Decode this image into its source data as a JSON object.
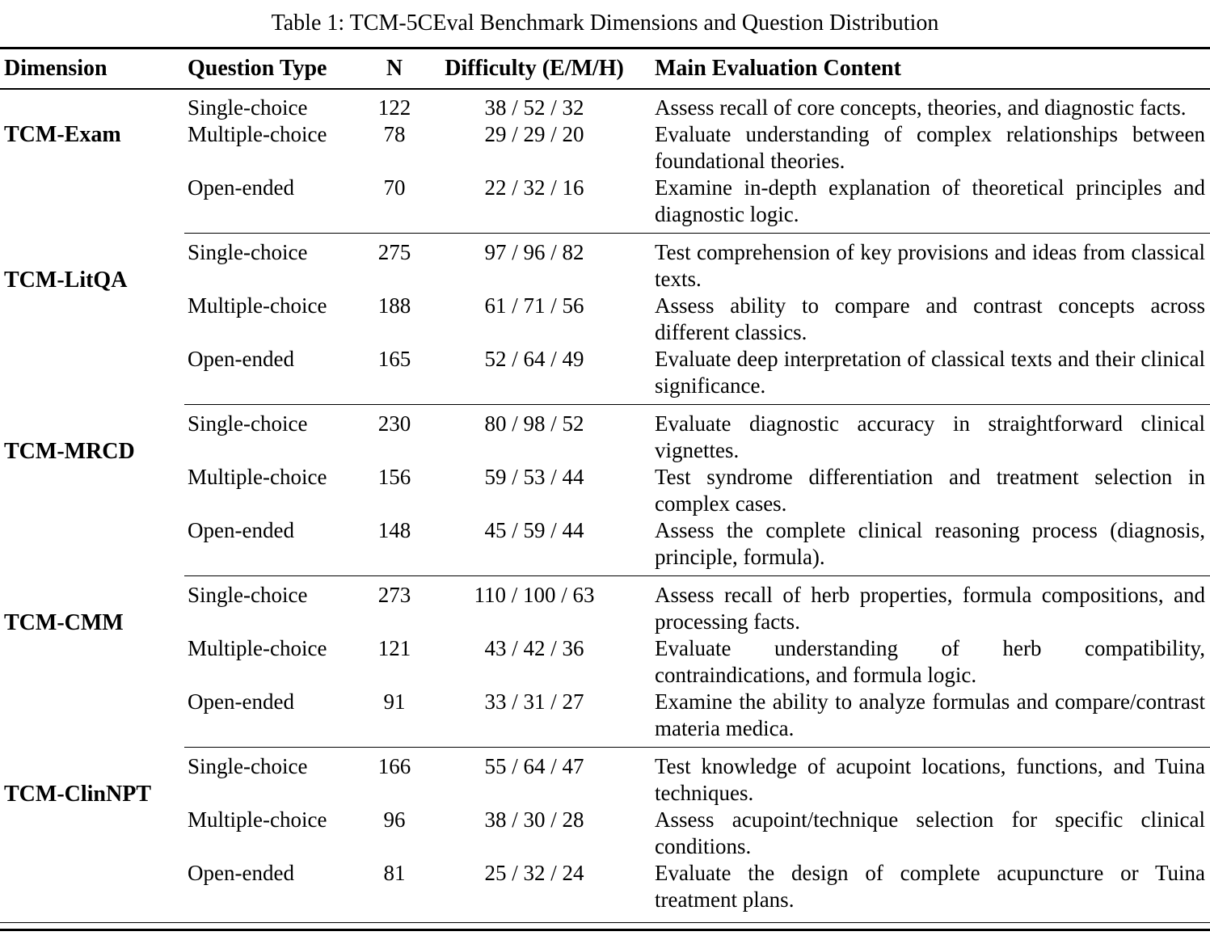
{
  "caption": "Table 1: TCM-5CEval Benchmark Dimensions and Question Distribution",
  "table": {
    "headers": [
      "Dimension",
      "Question Type",
      "N",
      "Difficulty (E/M/H)",
      "Main Evaluation Content"
    ],
    "groups": [
      {
        "dimension": "TCM-Exam",
        "rows": [
          {
            "type": "Single-choice",
            "n": "122",
            "difficulty": "38 / 52 / 32",
            "content": "Assess recall of core concepts, theories, and diagnostic facts."
          },
          {
            "type": "Multiple-choice",
            "n": "78",
            "difficulty": "29 / 29 / 20",
            "content": "Evaluate understanding of complex relationships between foundational theories."
          },
          {
            "type": "Open-ended",
            "n": "70",
            "difficulty": "22 / 32 / 16",
            "content": "Examine in-depth explanation of theoretical principles and diagnostic logic."
          }
        ]
      },
      {
        "dimension": "TCM-LitQA",
        "rows": [
          {
            "type": "Single-choice",
            "n": "275",
            "difficulty": "97 / 96 / 82",
            "content": "Test comprehension of key provisions and ideas from classical texts."
          },
          {
            "type": "Multiple-choice",
            "n": "188",
            "difficulty": "61 / 71 / 56",
            "content": "Assess ability to compare and contrast concepts across different classics."
          },
          {
            "type": "Open-ended",
            "n": "165",
            "difficulty": "52 / 64 / 49",
            "content": "Evaluate deep interpretation of classical texts and their clinical significance."
          }
        ]
      },
      {
        "dimension": "TCM-MRCD",
        "rows": [
          {
            "type": "Single-choice",
            "n": "230",
            "difficulty": "80 / 98 / 52",
            "content": "Evaluate diagnostic accuracy in straightforward clinical vignettes."
          },
          {
            "type": "Multiple-choice",
            "n": "156",
            "difficulty": "59 / 53 / 44",
            "content": "Test syndrome differentiation and treatment selection in complex cases."
          },
          {
            "type": "Open-ended",
            "n": "148",
            "difficulty": "45 / 59 / 44",
            "content": "Assess the complete clinical reasoning process (diagnosis, principle, formula)."
          }
        ]
      },
      {
        "dimension": "TCM-CMM",
        "rows": [
          {
            "type": "Single-choice",
            "n": "273",
            "difficulty": "110 / 100 / 63",
            "content": "Assess recall of herb properties, formula compositions, and processing facts."
          },
          {
            "type": "Multiple-choice",
            "n": "121",
            "difficulty": "43 / 42 / 36",
            "content": "Evaluate understanding of herb compatibility, contraindications, and formula logic."
          },
          {
            "type": "Open-ended",
            "n": "91",
            "difficulty": "33 / 31 / 27",
            "content": "Examine the ability to analyze formulas and compare/contrast materia medica."
          }
        ]
      },
      {
        "dimension": "TCM-ClinNPT",
        "rows": [
          {
            "type": "Single-choice",
            "n": "166",
            "difficulty": "55 / 64 / 47",
            "content": "Test knowledge of acupoint locations, functions, and Tuina techniques."
          },
          {
            "type": "Multiple-choice",
            "n": "96",
            "difficulty": "38 / 30 / 28",
            "content": "Assess acupoint/technique selection for specific clinical conditions."
          },
          {
            "type": "Open-ended",
            "n": "81",
            "difficulty": "25 / 32 / 24",
            "content": "Evaluate the design of complete acupuncture or Tuina treatment plans."
          }
        ]
      }
    ]
  }
}
